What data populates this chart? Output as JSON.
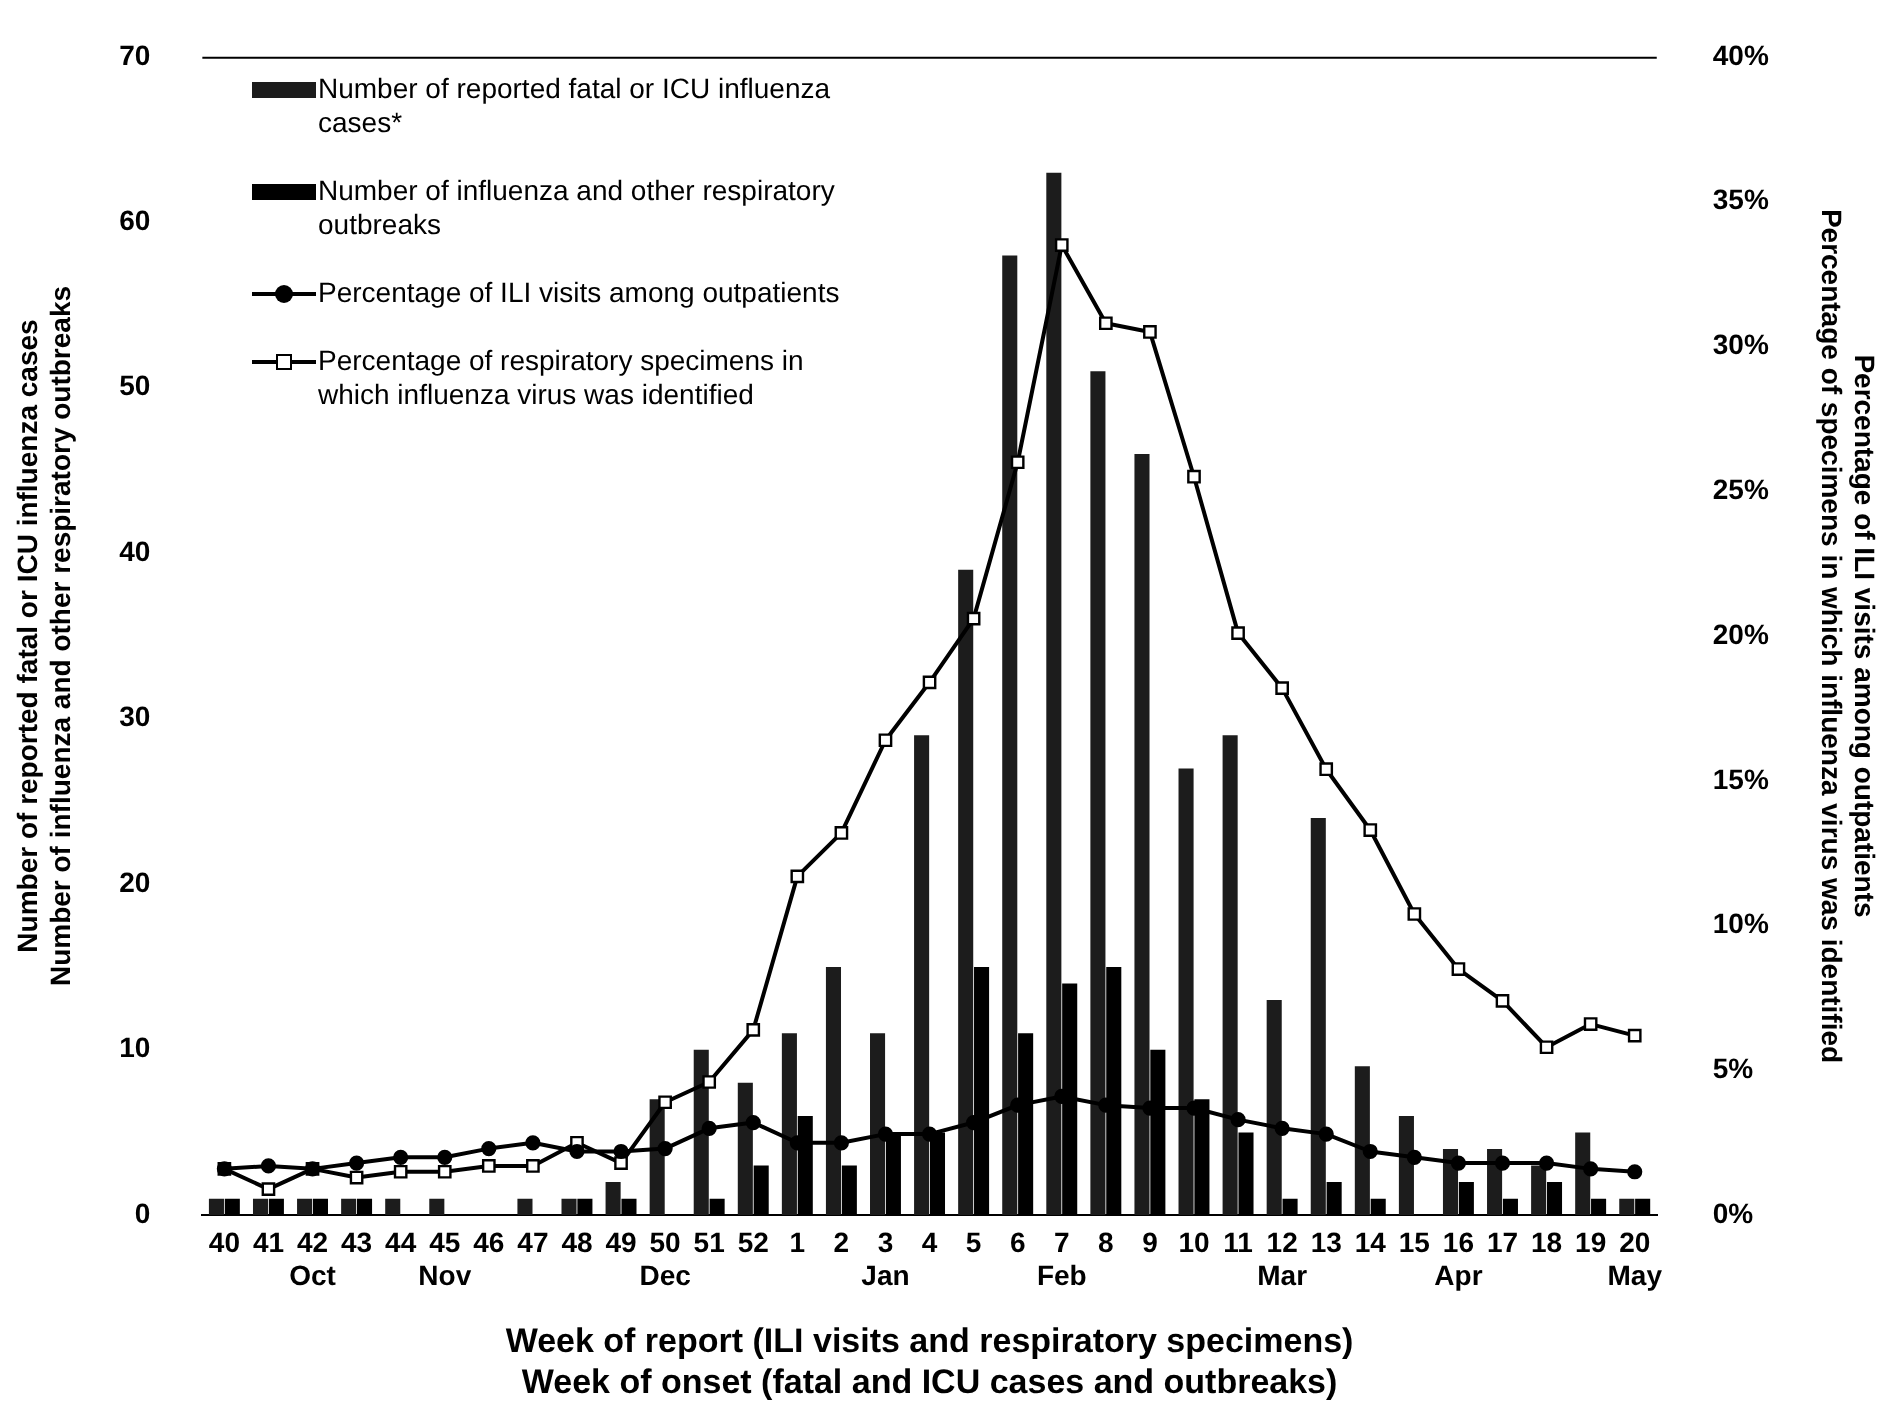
{
  "chart_data": {
    "type": "bar",
    "xlabel": "Week of report (ILI visits and respiratory specimens)\nWeek of onset (fatal and ICU cases and outbreaks)",
    "ylabel": "Number of reported fatal or ICU influenza cases\nNumber of influenza and other respiratory outbreaks",
    "y2label": "Percentage of ILI visits among outpatients\nPercentage of specimens in which influenza virus was identified",
    "categories": [
      "40",
      "41",
      "42\nOct",
      "43",
      "44",
      "45\nNov",
      "46",
      "47",
      "48",
      "49",
      "50\nDec",
      "51",
      "52",
      "1",
      "2",
      "3\nJan",
      "4",
      "5",
      "6",
      "7\nFeb",
      "8",
      "9",
      "10",
      "11",
      "12\nMar",
      "13",
      "14",
      "15",
      "16\nApr",
      "17",
      "18",
      "19",
      "20\nMay"
    ],
    "series": [
      {
        "name": "Number of reported fatal or ICU influenza cases*",
        "color": "#1c1c1c",
        "values": [
          1,
          1,
          1,
          1,
          1,
          1,
          0,
          1,
          1,
          2,
          7,
          10,
          8,
          11,
          15,
          11,
          29,
          39,
          58,
          63,
          51,
          46,
          27,
          29,
          13,
          24,
          9,
          6,
          4,
          4,
          3,
          5,
          1
        ]
      },
      {
        "name": "Number of influenza and other respiratory outbreaks",
        "color": "#000000",
        "values": [
          1,
          1,
          1,
          1,
          0,
          0,
          0,
          0,
          1,
          1,
          0,
          1,
          3,
          6,
          3,
          5,
          5,
          15,
          11,
          14,
          15,
          10,
          7,
          5,
          1,
          2,
          1,
          0,
          2,
          1,
          2,
          1,
          1
        ]
      },
      {
        "name": "Percentage of ILI visits among outpatients",
        "type": "line",
        "axis": "y2",
        "marker": "circle",
        "color": "#000000",
        "values": [
          1.6,
          1.7,
          1.6,
          1.8,
          2.0,
          2.0,
          2.3,
          2.5,
          2.2,
          2.2,
          2.3,
          3.0,
          3.2,
          2.5,
          2.5,
          2.8,
          2.8,
          3.2,
          3.8,
          4.1,
          3.8,
          3.7,
          3.7,
          3.3,
          3.0,
          2.8,
          2.2,
          2.0,
          1.8,
          1.8,
          1.8,
          1.6,
          1.5
        ]
      },
      {
        "name": "Percentage of respiratory specimens in which influenza virus was identified",
        "type": "line",
        "axis": "y2",
        "marker": "square",
        "color": "#000000",
        "values": [
          1.6,
          0.9,
          1.6,
          1.3,
          1.5,
          1.5,
          1.7,
          1.7,
          2.5,
          1.8,
          3.9,
          4.6,
          6.4,
          11.7,
          13.2,
          16.4,
          18.4,
          20.6,
          26.0,
          33.5,
          30.8,
          30.5,
          25.5,
          20.1,
          18.2,
          15.4,
          13.3,
          10.4,
          8.5,
          7.4,
          5.8,
          6.6,
          6.2
        ]
      }
    ],
    "ylim": [
      0,
      70
    ],
    "yticks": [
      0,
      10,
      20,
      30,
      40,
      50,
      60,
      70
    ],
    "y2lim": [
      0,
      40
    ],
    "y2ticks": [
      {
        "value": 0,
        "label": "0%"
      },
      {
        "value": 5,
        "label": "5%"
      },
      {
        "value": 10,
        "label": "10%"
      },
      {
        "value": 15,
        "label": "15%"
      },
      {
        "value": 20,
        "label": "20%"
      },
      {
        "value": 25,
        "label": "25%"
      },
      {
        "value": 30,
        "label": "30%"
      },
      {
        "value": 35,
        "label": "35%"
      },
      {
        "value": 40,
        "label": "40%"
      }
    ],
    "grid": false,
    "legend": "top left"
  }
}
